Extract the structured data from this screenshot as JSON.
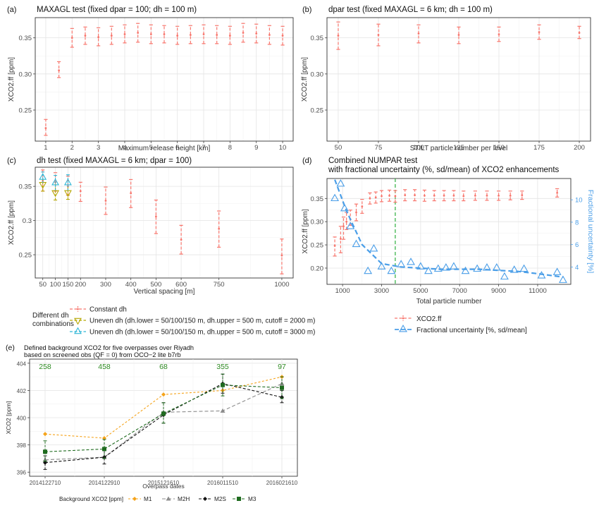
{
  "colors": {
    "red": "#f8766d",
    "blue": "#4a9ee8",
    "green_vline": "#3cb44b",
    "olive": "#b5a600",
    "cyan": "#2fb6d6",
    "orange": "#f5a31a",
    "grey": "#8c8c8c",
    "black": "#111111",
    "darkgreen": "#1f6b1f",
    "count_green": "#2e8b22"
  },
  "chart_data": [
    {
      "id": "a",
      "panel_label": "(a)",
      "type": "scatter",
      "title": "MAXAGL test (fixed dpar = 100; dh = 100 m)",
      "xlabel": "Maximum release height [km]",
      "ylabel": "XCO2.ff [ppm]",
      "xlim": [
        0.6,
        10.4
      ],
      "ylim": [
        0.207,
        0.378
      ],
      "xticks": [
        1,
        2,
        3,
        4,
        5,
        6,
        7,
        8,
        9,
        10
      ],
      "yticks": [
        0.25,
        0.3,
        0.35
      ],
      "ytick_labels": [
        "0.25",
        "0.30",
        "0.35"
      ],
      "series": [
        {
          "style": "errorbar",
          "points": [
            {
              "x": 1.0,
              "mean": 0.225,
              "lo": 0.215,
              "hi": 0.237
            },
            {
              "x": 1.5,
              "mean": 0.305,
              "lo": 0.295,
              "hi": 0.317
            },
            {
              "x": 2.0,
              "mean": 0.35,
              "lo": 0.337,
              "hi": 0.363
            },
            {
              "x": 2.5,
              "mean": 0.353,
              "lo": 0.341,
              "hi": 0.365
            },
            {
              "x": 3.0,
              "mean": 0.351,
              "lo": 0.339,
              "hi": 0.364
            },
            {
              "x": 3.5,
              "mean": 0.353,
              "lo": 0.341,
              "hi": 0.366
            },
            {
              "x": 4.0,
              "mean": 0.355,
              "lo": 0.343,
              "hi": 0.368
            },
            {
              "x": 4.5,
              "mean": 0.357,
              "lo": 0.344,
              "hi": 0.37
            },
            {
              "x": 5.0,
              "mean": 0.355,
              "lo": 0.342,
              "hi": 0.368
            },
            {
              "x": 5.5,
              "mean": 0.355,
              "lo": 0.343,
              "hi": 0.367
            },
            {
              "x": 6.0,
              "mean": 0.353,
              "lo": 0.341,
              "hi": 0.366
            },
            {
              "x": 6.5,
              "mean": 0.354,
              "lo": 0.342,
              "hi": 0.367
            },
            {
              "x": 7.0,
              "mean": 0.355,
              "lo": 0.342,
              "hi": 0.368
            },
            {
              "x": 7.5,
              "mean": 0.354,
              "lo": 0.342,
              "hi": 0.367
            },
            {
              "x": 8.0,
              "mean": 0.353,
              "lo": 0.341,
              "hi": 0.366
            },
            {
              "x": 8.5,
              "mean": 0.357,
              "lo": 0.344,
              "hi": 0.37
            },
            {
              "x": 9.0,
              "mean": 0.356,
              "lo": 0.343,
              "hi": 0.369
            },
            {
              "x": 9.5,
              "mean": 0.354,
              "lo": 0.341,
              "hi": 0.367
            },
            {
              "x": 10.0,
              "mean": 0.353,
              "lo": 0.34,
              "hi": 0.366
            }
          ]
        }
      ],
      "grid": true
    },
    {
      "id": "b",
      "panel_label": "(b)",
      "type": "scatter",
      "title": "dpar test (fixed MAXAGL = 6 km; dh = 100 m)",
      "xlabel": "STILT particle number per level",
      "ylabel": "XCO2.ff [ppm]",
      "xlim": [
        43,
        207
      ],
      "ylim": [
        0.207,
        0.378
      ],
      "xticks": [
        50,
        75,
        100,
        125,
        150,
        175,
        200
      ],
      "yticks": [
        0.25,
        0.3,
        0.35
      ],
      "ytick_labels": [
        "0.25",
        "0.30",
        "0.35"
      ],
      "series": [
        {
          "style": "errorbar",
          "points": [
            {
              "x": 50,
              "mean": 0.353,
              "lo": 0.334,
              "hi": 0.372
            },
            {
              "x": 75,
              "mean": 0.354,
              "lo": 0.339,
              "hi": 0.369
            },
            {
              "x": 100,
              "mean": 0.356,
              "lo": 0.343,
              "hi": 0.368
            },
            {
              "x": 125,
              "mean": 0.354,
              "lo": 0.342,
              "hi": 0.365
            },
            {
              "x": 150,
              "mean": 0.355,
              "lo": 0.345,
              "hi": 0.365
            },
            {
              "x": 175,
              "mean": 0.358,
              "lo": 0.348,
              "hi": 0.368
            },
            {
              "x": 200,
              "mean": 0.357,
              "lo": 0.349,
              "hi": 0.366
            }
          ]
        }
      ],
      "grid": true
    },
    {
      "id": "c",
      "panel_label": "(c)",
      "type": "scatter",
      "title": "dh test (fixed MAXAGL = 6 km; dpar = 100)",
      "xlabel": "Vertical spacing [m]",
      "ylabel": "XCO2.ff [ppm]",
      "xlim": [
        20,
        1045
      ],
      "ylim": [
        0.216,
        0.378
      ],
      "xticks": [
        50,
        100,
        150,
        200,
        300,
        400,
        500,
        600,
        750,
        1000
      ],
      "yticks": [
        0.25,
        0.3,
        0.35
      ],
      "ytick_labels": [
        "0.25",
        "0.3",
        "0.35"
      ],
      "series": [
        {
          "name": "Constant dh",
          "style": "errorbar",
          "points": [
            {
              "x": 50,
              "mean": 0.358,
              "lo": 0.343,
              "hi": 0.374
            },
            {
              "x": 100,
              "mean": 0.356,
              "lo": 0.343,
              "hi": 0.37
            },
            {
              "x": 150,
              "mean": 0.35,
              "lo": 0.337,
              "hi": 0.365
            },
            {
              "x": 200,
              "mean": 0.343,
              "lo": 0.328,
              "hi": 0.356
            },
            {
              "x": 300,
              "mean": 0.329,
              "lo": 0.309,
              "hi": 0.349
            },
            {
              "x": 400,
              "mean": 0.34,
              "lo": 0.319,
              "hi": 0.36
            },
            {
              "x": 500,
              "mean": 0.306,
              "lo": 0.281,
              "hi": 0.33
            },
            {
              "x": 600,
              "mean": 0.272,
              "lo": 0.251,
              "hi": 0.293
            },
            {
              "x": 750,
              "mean": 0.288,
              "lo": 0.261,
              "hi": 0.314
            },
            {
              "x": 1000,
              "mean": 0.249,
              "lo": 0.222,
              "hi": 0.273
            }
          ]
        },
        {
          "name": "Uneven dh (dh.lower = 50/100/150 m, dh.upper = 500 m, cutoff = 2000 m)",
          "style": "triangle-down",
          "points": [
            {
              "x": 50,
              "mean": 0.353,
              "lo": 0.343,
              "hi": 0.362
            },
            {
              "x": 100,
              "mean": 0.341,
              "lo": 0.33,
              "hi": 0.354
            },
            {
              "x": 150,
              "mean": 0.341,
              "lo": 0.331,
              "hi": 0.352
            }
          ]
        },
        {
          "name": "Uneven dh (dh.lower = 50/100/150 m, dh.upper = 500 m, cutoff = 3000 m)",
          "style": "triangle-up",
          "points": [
            {
              "x": 50,
              "mean": 0.363,
              "lo": 0.355,
              "hi": 0.371
            },
            {
              "x": 100,
              "mean": 0.355,
              "lo": 0.344,
              "hi": 0.366
            },
            {
              "x": 150,
              "mean": 0.355,
              "lo": 0.344,
              "hi": 0.367
            }
          ]
        }
      ],
      "legend_title": "Different dh\ncombinations",
      "legend_placement": "bottom",
      "grid": true
    },
    {
      "id": "d",
      "panel_label": "(d)",
      "type": "scatter",
      "title": "Combined NUMPAR test\nwith fractional uncertainty (%, sd/mean) of XCO2 enhancements",
      "xlabel": "Total particle number",
      "ylabel": "XCO2.ff [ppm]",
      "y2label": "Fractional uncertainty [%]",
      "xlim": [
        200,
        12700
      ],
      "ylim": [
        0.165,
        0.393
      ],
      "y2lim": [
        2.45,
        11.9
      ],
      "xticks": [
        1000,
        3000,
        5000,
        7000,
        9000,
        11000
      ],
      "yticks": [
        0.2,
        0.25,
        0.3,
        0.35
      ],
      "ytick_labels": [
        "0.20",
        "0.25",
        "0.30",
        "0.35"
      ],
      "y2ticks": [
        4,
        6,
        8,
        10
      ],
      "vline_x": 3700,
      "series": [
        {
          "name": "XCO2.ff",
          "style": "errorbar",
          "points": [
            {
              "x": 600,
              "mean": 0.248,
              "lo": 0.226,
              "hi": 0.267
            },
            {
              "x": 900,
              "mean": 0.263,
              "lo": 0.233,
              "hi": 0.29
            },
            {
              "x": 1050,
              "mean": 0.29,
              "lo": 0.262,
              "hi": 0.31
            },
            {
              "x": 1200,
              "mean": 0.3,
              "lo": 0.283,
              "hi": 0.32
            },
            {
              "x": 1400,
              "mean": 0.305,
              "lo": 0.292,
              "hi": 0.325
            },
            {
              "x": 1700,
              "mean": 0.32,
              "lo": 0.302,
              "hi": 0.338
            },
            {
              "x": 2000,
              "mean": 0.333,
              "lo": 0.318,
              "hi": 0.348
            },
            {
              "x": 2400,
              "mean": 0.35,
              "lo": 0.338,
              "hi": 0.362
            },
            {
              "x": 2700,
              "mean": 0.352,
              "lo": 0.34,
              "hi": 0.364
            },
            {
              "x": 3000,
              "mean": 0.355,
              "lo": 0.343,
              "hi": 0.367
            },
            {
              "x": 3400,
              "mean": 0.356,
              "lo": 0.344,
              "hi": 0.368
            },
            {
              "x": 3700,
              "mean": 0.355,
              "lo": 0.342,
              "hi": 0.367
            },
            {
              "x": 4200,
              "mean": 0.357,
              "lo": 0.345,
              "hi": 0.369
            },
            {
              "x": 4700,
              "mean": 0.357,
              "lo": 0.345,
              "hi": 0.369
            },
            {
              "x": 5200,
              "mean": 0.356,
              "lo": 0.344,
              "hi": 0.368
            },
            {
              "x": 5700,
              "mean": 0.356,
              "lo": 0.345,
              "hi": 0.367
            },
            {
              "x": 6200,
              "mean": 0.356,
              "lo": 0.345,
              "hi": 0.367
            },
            {
              "x": 6700,
              "mean": 0.356,
              "lo": 0.345,
              "hi": 0.367
            },
            {
              "x": 7200,
              "mean": 0.355,
              "lo": 0.345,
              "hi": 0.366
            },
            {
              "x": 7800,
              "mean": 0.356,
              "lo": 0.346,
              "hi": 0.366
            },
            {
              "x": 8400,
              "mean": 0.356,
              "lo": 0.346,
              "hi": 0.366
            },
            {
              "x": 9000,
              "mean": 0.356,
              "lo": 0.346,
              "hi": 0.366
            },
            {
              "x": 9600,
              "mean": 0.356,
              "lo": 0.347,
              "hi": 0.366
            },
            {
              "x": 10200,
              "mean": 0.357,
              "lo": 0.348,
              "hi": 0.366
            },
            {
              "x": 12000,
              "mean": 0.362,
              "lo": 0.353,
              "hi": 0.371
            }
          ]
        },
        {
          "name": "Fractional uncertainty [%, sd/mean]",
          "style": "triangle-up",
          "axis": "right",
          "points": [
            {
              "x": 600,
              "y": 10.1
            },
            {
              "x": 900,
              "y": 11.4
            },
            {
              "x": 1100,
              "y": 9.2
            },
            {
              "x": 1400,
              "y": 7.6
            },
            {
              "x": 1700,
              "y": 6.0
            },
            {
              "x": 2300,
              "y": 3.6
            },
            {
              "x": 2600,
              "y": 5.6
            },
            {
              "x": 3000,
              "y": 4.0
            },
            {
              "x": 3500,
              "y": 3.6
            },
            {
              "x": 4000,
              "y": 4.2
            },
            {
              "x": 4500,
              "y": 4.4
            },
            {
              "x": 5000,
              "y": 4.0
            },
            {
              "x": 5400,
              "y": 3.6
            },
            {
              "x": 5900,
              "y": 3.8
            },
            {
              "x": 6300,
              "y": 3.9
            },
            {
              "x": 6700,
              "y": 4.0
            },
            {
              "x": 7300,
              "y": 3.6
            },
            {
              "x": 7900,
              "y": 3.8
            },
            {
              "x": 8400,
              "y": 3.9
            },
            {
              "x": 8900,
              "y": 3.9
            },
            {
              "x": 9300,
              "y": 3.1
            },
            {
              "x": 9800,
              "y": 3.7
            },
            {
              "x": 10300,
              "y": 3.8
            },
            {
              "x": 11200,
              "y": 3.2
            },
            {
              "x": 12000,
              "y": 3.5
            },
            {
              "x": 12300,
              "y": 2.8
            }
          ],
          "trend": [
            {
              "x": 600,
              "y": 11.8
            },
            {
              "x": 1200,
              "y": 9.0
            },
            {
              "x": 2000,
              "y": 6.0
            },
            {
              "x": 3000,
              "y": 4.3
            },
            {
              "x": 4000,
              "y": 4.0
            },
            {
              "x": 5000,
              "y": 3.9
            },
            {
              "x": 6000,
              "y": 3.8
            },
            {
              "x": 7000,
              "y": 3.8
            },
            {
              "x": 8000,
              "y": 3.8
            },
            {
              "x": 9000,
              "y": 3.7
            },
            {
              "x": 10000,
              "y": 3.6
            },
            {
              "x": 11000,
              "y": 3.4
            },
            {
              "x": 12300,
              "y": 3.1
            }
          ]
        }
      ],
      "legend_placement": "bottom",
      "grid": true
    },
    {
      "id": "e",
      "panel_label": "(e)",
      "type": "line",
      "title": "Defined background XCO2 for five overpasses over Riyadh\n based on screened obs (QF = 0) from OCO−2 lite b7rb",
      "xlabel": "Overpass dates",
      "ylabel": "XCO2 [ppm]",
      "categories": [
        "2014122710",
        "2014122910",
        "2015121610",
        "2016011510",
        "2016021610"
      ],
      "ylim": [
        395.7,
        404.3
      ],
      "yticks": [
        396,
        398,
        400,
        402,
        404
      ],
      "counts": [
        "258",
        "458",
        "68",
        "355",
        "97"
      ],
      "legend_title": "Background XCO2 [ppm]",
      "legend_placement": "bottom",
      "series": [
        {
          "name": "M1",
          "marker": "diamond",
          "values": [
            398.8,
            398.5,
            401.7,
            402.0,
            403.0
          ]
        },
        {
          "name": "M2H",
          "marker": "triangle",
          "values": [
            396.9,
            397.1,
            400.4,
            400.5,
            402.5
          ]
        },
        {
          "name": "M2S",
          "marker": "diamond",
          "values": [
            396.7,
            397.1,
            400.2,
            402.5,
            401.5
          ],
          "err": [
            [
              396.2,
              397.2
            ],
            [
              396.6,
              397.6
            ],
            [
              399.6,
              401.1
            ],
            [
              401.8,
              403.2
            ],
            [
              401.1,
              402.0
            ]
          ]
        },
        {
          "name": "M3",
          "marker": "square",
          "values": [
            397.5,
            397.7,
            400.3,
            402.4,
            402.2
          ],
          "err": [
            [
              396.8,
              398.3
            ],
            [
              397.0,
              398.4
            ],
            [
              399.6,
              401.1
            ],
            [
              401.6,
              403.2
            ],
            [
              401.4,
              403.0
            ]
          ]
        }
      ],
      "grid": true
    }
  ]
}
